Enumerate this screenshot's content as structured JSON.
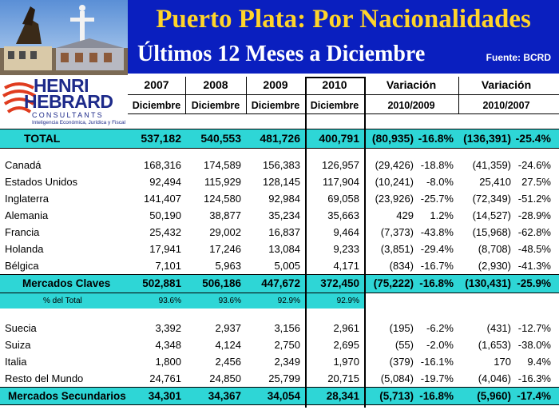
{
  "header": {
    "title": "Puerto Plata: Por Nacionalidades",
    "subtitle": "Últimos 12 Meses a Diciembre",
    "source": "Fuente: BCRD"
  },
  "logo": {
    "line1": "HENRI",
    "line2": "HEBRARD",
    "sub": "CONSULTANTS",
    "tagline": "Inteligencia Económica, Jurídica y Fiscal"
  },
  "columns": {
    "years": [
      "2007",
      "2008",
      "2009",
      "2010"
    ],
    "month": "Diciembre",
    "var1_title": "Variación",
    "var1_sub": "2010/2009",
    "var2_title": "Variación",
    "var2_sub": "2010/2007"
  },
  "total": {
    "label": "TOTAL",
    "values": [
      "537,182",
      "540,553",
      "481,726",
      "400,791",
      "(80,935)",
      "-16.8%",
      "(136,391)",
      "-25.4%"
    ]
  },
  "rows_a": [
    {
      "label": "Canadá",
      "values": [
        "168,316",
        "174,589",
        "156,383",
        "126,957",
        "(29,426)",
        "-18.8%",
        "(41,359)",
        "-24.6%"
      ]
    },
    {
      "label": "Estados Unidos",
      "values": [
        "92,494",
        "115,929",
        "128,145",
        "117,904",
        "(10,241)",
        "-8.0%",
        "25,410",
        "27.5%"
      ]
    },
    {
      "label": "Inglaterra",
      "values": [
        "141,407",
        "124,580",
        "92,984",
        "69,058",
        "(23,926)",
        "-25.7%",
        "(72,349)",
        "-51.2%"
      ]
    },
    {
      "label": "Alemania",
      "values": [
        "50,190",
        "38,877",
        "35,234",
        "35,663",
        "429",
        "1.2%",
        "(14,527)",
        "-28.9%"
      ]
    },
    {
      "label": "Francia",
      "values": [
        "25,432",
        "29,002",
        "16,837",
        "9,464",
        "(7,373)",
        "-43.8%",
        "(15,968)",
        "-62.8%"
      ]
    },
    {
      "label": "Holanda",
      "values": [
        "17,941",
        "17,246",
        "13,084",
        "9,233",
        "(3,851)",
        "-29.4%",
        "(8,708)",
        "-48.5%"
      ]
    },
    {
      "label": "Bélgica",
      "values": [
        "7,101",
        "5,963",
        "5,005",
        "4,171",
        "(834)",
        "-16.7%",
        "(2,930)",
        "-41.3%"
      ]
    }
  ],
  "mercados_claves": {
    "label": "Mercados Claves",
    "values": [
      "502,881",
      "506,186",
      "447,672",
      "372,450",
      "(75,222)",
      "-16.8%",
      "(130,431)",
      "-25.9%"
    ]
  },
  "pct_total": {
    "label": "% del Total",
    "values": [
      "93.6%",
      "93.6%",
      "92.9%",
      "92.9%"
    ]
  },
  "rows_b": [
    {
      "label": "Suecia",
      "values": [
        "3,392",
        "2,937",
        "3,156",
        "2,961",
        "(195)",
        "-6.2%",
        "(431)",
        "-12.7%"
      ]
    },
    {
      "label": "Suiza",
      "values": [
        "4,348",
        "4,124",
        "2,750",
        "2,695",
        "(55)",
        "-2.0%",
        "(1,653)",
        "-38.0%"
      ]
    },
    {
      "label": "Italia",
      "values": [
        "1,800",
        "2,456",
        "2,349",
        "1,970",
        "(379)",
        "-16.1%",
        "170",
        "9.4%"
      ]
    },
    {
      "label": "Resto del Mundo",
      "values": [
        "24,761",
        "24,850",
        "25,799",
        "20,715",
        "(5,084)",
        "-19.7%",
        "(4,046)",
        "-16.3%"
      ]
    }
  ],
  "mercados_secundarios": {
    "label": "Mercados Secundarios",
    "values": [
      "34,301",
      "34,367",
      "34,054",
      "28,341",
      "(5,713)",
      "-16.8%",
      "(5,960)",
      "-17.4%"
    ]
  },
  "colors": {
    "header_blue": "#0a1fbf",
    "title_yellow": "#ffd42a",
    "band_cyan": "#2ed6d6"
  }
}
